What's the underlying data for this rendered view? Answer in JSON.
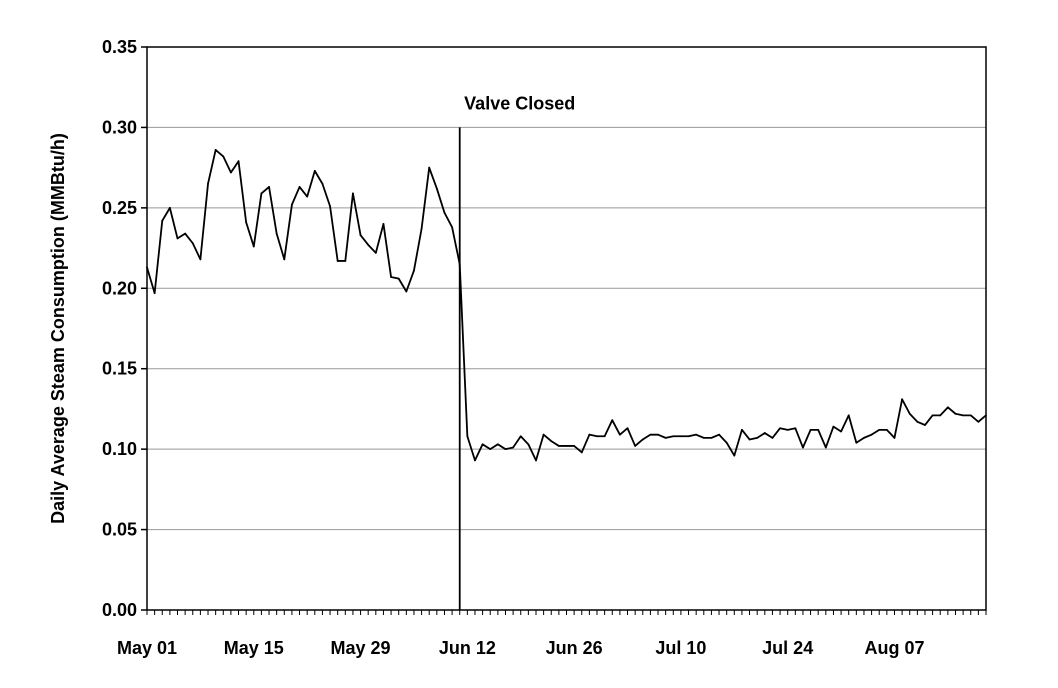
{
  "chart_data": {
    "type": "line",
    "title": "",
    "xlabel": "",
    "ylabel": "Daily Average Steam Consumption (MMBtu/h)",
    "ylim": [
      0,
      0.35
    ],
    "yticks": [
      "0.00",
      "0.05",
      "0.10",
      "0.15",
      "0.20",
      "0.25",
      "0.30",
      "0.35"
    ],
    "xlim": [
      "2000-05-01",
      "2000-08-19"
    ],
    "xticks": [
      {
        "date": "2000-05-01",
        "label": "May 01"
      },
      {
        "date": "2000-05-15",
        "label": "May 15"
      },
      {
        "date": "2000-05-29",
        "label": "May 29"
      },
      {
        "date": "2000-06-12",
        "label": "Jun 12"
      },
      {
        "date": "2000-06-26",
        "label": "Jun 26"
      },
      {
        "date": "2000-07-10",
        "label": "Jul 10"
      },
      {
        "date": "2000-07-24",
        "label": "Jul 24"
      },
      {
        "date": "2000-08-07",
        "label": "Aug 07"
      }
    ],
    "grid": "horizontal",
    "line_color": "#000000",
    "annotations": [
      {
        "type": "vline",
        "x": "2000-06-11",
        "y_top": 0.3,
        "label": "Valve Closed"
      }
    ],
    "series": [
      {
        "x": [
          "2000-05-01",
          "2000-05-02",
          "2000-05-03",
          "2000-05-04",
          "2000-05-05",
          "2000-05-06",
          "2000-05-07",
          "2000-05-08",
          "2000-05-09",
          "2000-05-10",
          "2000-05-11",
          "2000-05-12",
          "2000-05-13",
          "2000-05-14",
          "2000-05-15",
          "2000-05-16",
          "2000-05-17",
          "2000-05-18",
          "2000-05-19",
          "2000-05-20",
          "2000-05-21",
          "2000-05-22",
          "2000-05-23",
          "2000-05-24",
          "2000-05-25",
          "2000-05-26",
          "2000-05-27",
          "2000-05-28",
          "2000-05-29",
          "2000-05-30",
          "2000-05-31",
          "2000-06-01",
          "2000-06-02",
          "2000-06-03",
          "2000-06-04",
          "2000-06-05",
          "2000-06-06",
          "2000-06-07",
          "2000-06-08",
          "2000-06-09",
          "2000-06-10",
          "2000-06-11",
          "2000-06-12",
          "2000-06-13",
          "2000-06-14",
          "2000-06-15",
          "2000-06-16",
          "2000-06-17",
          "2000-06-18",
          "2000-06-19",
          "2000-06-20",
          "2000-06-21",
          "2000-06-22",
          "2000-06-23",
          "2000-06-24",
          "2000-06-25",
          "2000-06-26",
          "2000-06-27",
          "2000-06-28",
          "2000-06-29",
          "2000-06-30",
          "2000-07-01",
          "2000-07-02",
          "2000-07-03",
          "2000-07-04",
          "2000-07-05",
          "2000-07-06",
          "2000-07-07",
          "2000-07-08",
          "2000-07-09",
          "2000-07-10",
          "2000-07-11",
          "2000-07-12",
          "2000-07-13",
          "2000-07-14",
          "2000-07-15",
          "2000-07-16",
          "2000-07-17",
          "2000-07-18",
          "2000-07-19",
          "2000-07-20",
          "2000-07-21",
          "2000-07-22",
          "2000-07-23",
          "2000-07-24",
          "2000-07-25",
          "2000-07-26",
          "2000-07-27",
          "2000-07-28",
          "2000-07-29",
          "2000-07-30",
          "2000-07-31",
          "2000-08-01",
          "2000-08-02",
          "2000-08-03",
          "2000-08-04",
          "2000-08-05",
          "2000-08-06",
          "2000-08-07",
          "2000-08-08",
          "2000-08-09",
          "2000-08-10",
          "2000-08-11",
          "2000-08-12",
          "2000-08-13",
          "2000-08-14",
          "2000-08-15",
          "2000-08-16",
          "2000-08-17",
          "2000-08-18",
          "2000-08-19"
        ],
        "values": [
          0.213,
          0.197,
          0.242,
          0.25,
          0.231,
          0.234,
          0.228,
          0.218,
          0.265,
          0.286,
          0.282,
          0.272,
          0.279,
          0.241,
          0.226,
          0.259,
          0.263,
          0.234,
          0.218,
          0.252,
          0.263,
          0.257,
          0.273,
          0.265,
          0.251,
          0.217,
          0.217,
          0.259,
          0.233,
          0.227,
          0.222,
          0.24,
          0.207,
          0.206,
          0.198,
          0.211,
          0.237,
          0.275,
          0.262,
          0.247,
          0.238,
          0.215,
          0.108,
          0.093,
          0.103,
          0.1,
          0.103,
          0.1,
          0.101,
          0.108,
          0.103,
          0.093,
          0.109,
          0.105,
          0.102,
          0.102,
          0.102,
          0.098,
          0.109,
          0.108,
          0.108,
          0.118,
          0.109,
          0.113,
          0.102,
          0.106,
          0.109,
          0.109,
          0.107,
          0.108,
          0.108,
          0.108,
          0.109,
          0.107,
          0.107,
          0.109,
          0.104,
          0.096,
          0.112,
          0.106,
          0.107,
          0.11,
          0.107,
          0.113,
          0.112,
          0.113,
          0.101,
          0.112,
          0.112,
          0.101,
          0.114,
          0.111,
          0.121,
          0.104,
          0.107,
          0.109,
          0.112,
          0.112,
          0.107,
          0.131,
          0.122,
          0.117,
          0.115,
          0.121,
          0.121,
          0.126,
          0.122,
          0.121,
          0.121,
          0.117,
          0.121
        ]
      }
    ]
  }
}
